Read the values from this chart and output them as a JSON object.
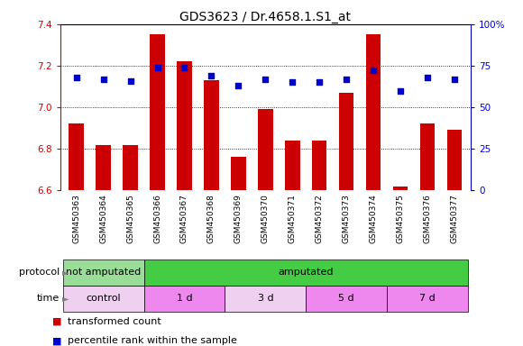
{
  "title": "GDS3623 / Dr.4658.1.S1_at",
  "samples": [
    "GSM450363",
    "GSM450364",
    "GSM450365",
    "GSM450366",
    "GSM450367",
    "GSM450368",
    "GSM450369",
    "GSM450370",
    "GSM450371",
    "GSM450372",
    "GSM450373",
    "GSM450374",
    "GSM450375",
    "GSM450376",
    "GSM450377"
  ],
  "bar_values": [
    6.92,
    6.82,
    6.82,
    7.35,
    7.22,
    7.13,
    6.76,
    6.99,
    6.84,
    6.84,
    7.07,
    7.35,
    6.62,
    6.92,
    6.89
  ],
  "dot_values": [
    68,
    67,
    66,
    74,
    74,
    69,
    63,
    67,
    65,
    65,
    67,
    72,
    60,
    68,
    67
  ],
  "ylim_left": [
    6.6,
    7.4
  ],
  "ylim_right": [
    0,
    100
  ],
  "yticks_left": [
    6.6,
    6.8,
    7.0,
    7.2,
    7.4
  ],
  "yticks_right": [
    0,
    25,
    50,
    75,
    100
  ],
  "bar_color": "#cc0000",
  "dot_color": "#0000cc",
  "bar_bottom": 6.6,
  "protocol_groups": [
    {
      "label": "not amputated",
      "start": 0,
      "end": 3,
      "color": "#99dd99"
    },
    {
      "label": "amputated",
      "start": 3,
      "end": 15,
      "color": "#44cc44"
    }
  ],
  "time_groups": [
    {
      "label": "control",
      "start": 0,
      "end": 3,
      "color": "#f0d0f0"
    },
    {
      "label": "1 d",
      "start": 3,
      "end": 6,
      "color": "#ee88ee"
    },
    {
      "label": "3 d",
      "start": 6,
      "end": 9,
      "color": "#f0d0f0"
    },
    {
      "label": "5 d",
      "start": 9,
      "end": 12,
      "color": "#ee88ee"
    },
    {
      "label": "7 d",
      "start": 12,
      "end": 15,
      "color": "#ee88ee"
    }
  ],
  "legend_items": [
    {
      "label": "transformed count",
      "color": "#cc0000"
    },
    {
      "label": "percentile rank within the sample",
      "color": "#0000cc"
    }
  ],
  "plot_bg": "#ffffff",
  "xtick_bg": "#e0e0e0",
  "title_fontsize": 10,
  "tick_fontsize": 7.5,
  "sample_fontsize": 6.5
}
